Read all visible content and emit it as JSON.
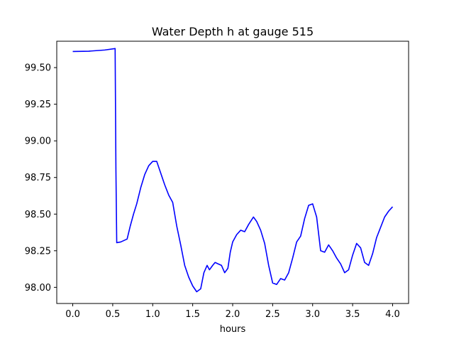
{
  "chart_data": {
    "type": "line",
    "title": "Water Depth h at gauge 515",
    "xlabel": "hours",
    "ylabel": "",
    "xlim": [
      -0.2,
      4.2
    ],
    "ylim": [
      97.89,
      99.68
    ],
    "grid": false,
    "x_ticks": [
      0.0,
      0.5,
      1.0,
      1.5,
      2.0,
      2.5,
      3.0,
      3.5,
      4.0
    ],
    "x_tick_labels": [
      "0.0",
      "0.5",
      "1.0",
      "1.5",
      "2.0",
      "2.5",
      "3.0",
      "3.5",
      "4.0"
    ],
    "y_ticks": [
      98.0,
      98.25,
      98.5,
      98.75,
      99.0,
      99.25,
      99.5
    ],
    "y_tick_labels": [
      "98.00",
      "98.25",
      "98.50",
      "98.75",
      "99.00",
      "99.25",
      "99.50"
    ],
    "series": [
      {
        "color": "#0000ff",
        "x": [
          0.0,
          0.2,
          0.4,
          0.53,
          0.54,
          0.55,
          0.6,
          0.68,
          0.72,
          0.76,
          0.8,
          0.85,
          0.9,
          0.95,
          1.0,
          1.05,
          1.1,
          1.15,
          1.2,
          1.25,
          1.3,
          1.35,
          1.4,
          1.45,
          1.5,
          1.55,
          1.6,
          1.64,
          1.68,
          1.71,
          1.75,
          1.78,
          1.82,
          1.86,
          1.9,
          1.94,
          1.97,
          2.0,
          2.05,
          2.1,
          2.15,
          2.2,
          2.26,
          2.3,
          2.35,
          2.4,
          2.45,
          2.5,
          2.55,
          2.6,
          2.65,
          2.7,
          2.75,
          2.8,
          2.85,
          2.9,
          2.95,
          3.0,
          3.05,
          3.1,
          3.15,
          3.2,
          3.25,
          3.3,
          3.35,
          3.4,
          3.45,
          3.5,
          3.55,
          3.6,
          3.65,
          3.7,
          3.75,
          3.8,
          3.85,
          3.9,
          3.95,
          4.0
        ],
        "y": [
          99.61,
          99.612,
          99.62,
          99.63,
          98.8,
          98.305,
          98.31,
          98.33,
          98.42,
          98.5,
          98.57,
          98.68,
          98.77,
          98.83,
          98.86,
          98.86,
          98.78,
          98.7,
          98.63,
          98.58,
          98.42,
          98.29,
          98.15,
          98.07,
          98.01,
          97.97,
          97.99,
          98.1,
          98.15,
          98.12,
          98.15,
          98.17,
          98.16,
          98.15,
          98.1,
          98.13,
          98.24,
          98.31,
          98.36,
          98.39,
          98.38,
          98.43,
          98.48,
          98.45,
          98.39,
          98.3,
          98.15,
          98.03,
          98.02,
          98.06,
          98.05,
          98.1,
          98.2,
          98.31,
          98.35,
          98.47,
          98.56,
          98.57,
          98.48,
          98.25,
          98.24,
          98.29,
          98.25,
          98.2,
          98.16,
          98.1,
          98.12,
          98.22,
          98.3,
          98.27,
          98.17,
          98.15,
          98.23,
          98.34,
          98.41,
          98.48,
          98.52,
          98.55
        ]
      }
    ]
  }
}
